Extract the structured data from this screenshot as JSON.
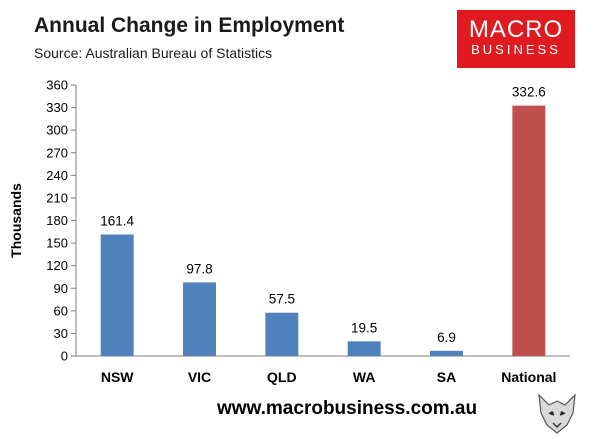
{
  "header": {
    "title": "Annual Change in Employment",
    "subtitle": "Source: Australian Bureau of Statistics"
  },
  "logo": {
    "line1": "MACRO",
    "line2": "BUSINESS"
  },
  "footer": {
    "url": "www.macrobusiness.com.au"
  },
  "colors": {
    "bar": "#4f81bd",
    "highlight": "#c0504d"
  },
  "chart_data": {
    "type": "bar",
    "title": "Annual Change in Employment",
    "subtitle": "Source: Australian Bureau of Statistics",
    "ylabel": "Thousands",
    "xlabel": "",
    "categories": [
      "NSW",
      "VIC",
      "QLD",
      "WA",
      "SA",
      "National"
    ],
    "values": [
      161.4,
      97.8,
      57.5,
      19.5,
      6.9,
      332.6
    ],
    "data_labels": [
      "161.4",
      "97.8",
      "57.5",
      "19.5",
      "6.9",
      "332.6"
    ],
    "highlight_category": "National",
    "ylim": [
      0,
      360
    ],
    "yticks": [
      0,
      30,
      60,
      90,
      120,
      150,
      180,
      210,
      240,
      270,
      300,
      330,
      360
    ],
    "grid": false,
    "legend": "none"
  }
}
